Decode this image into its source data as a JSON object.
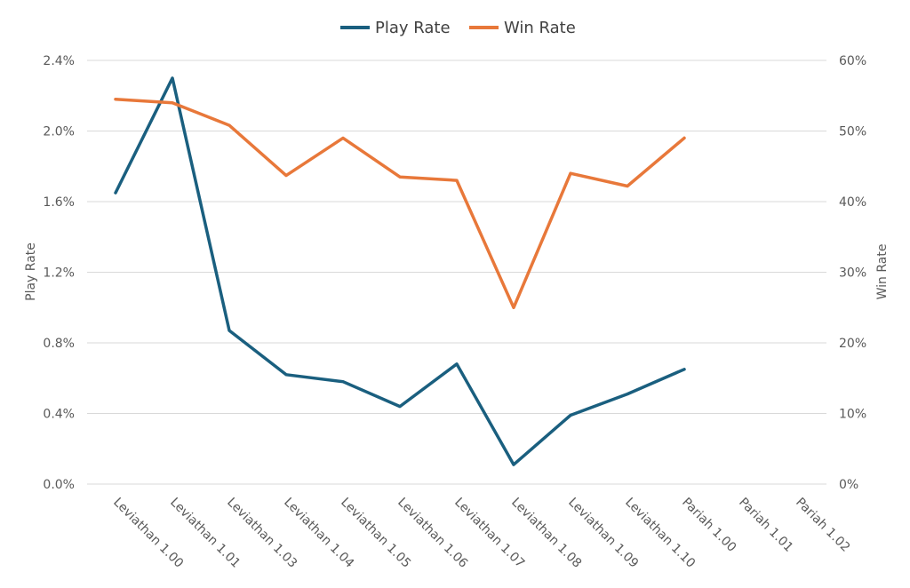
{
  "chart_data": {
    "type": "line",
    "categories": [
      "Leviathan 1.00",
      "Leviathan 1.01",
      "Leviathan 1.03",
      "Leviathan 1.04",
      "Leviathan 1.05",
      "Leviathan 1.06",
      "Leviathan 1.07",
      "Leviathan 1.08",
      "Leviathan 1.09",
      "Leviathan 1.10",
      "Pariah 1.00",
      "Pariah 1.01",
      "Pariah 1.02"
    ],
    "series": [
      {
        "name": "Play Rate",
        "axis": "left",
        "color": "#1a5f7f",
        "values": [
          1.65,
          2.3,
          0.87,
          0.62,
          0.58,
          0.44,
          0.68,
          0.11,
          0.39,
          0.51,
          0.65,
          null,
          null
        ]
      },
      {
        "name": "Win Rate",
        "axis": "right",
        "color": "#e8783a",
        "values": [
          54.5,
          54.0,
          50.8,
          43.7,
          49.0,
          43.5,
          43.0,
          25.0,
          44.0,
          42.2,
          49.0,
          null,
          null
        ]
      }
    ],
    "y_left": {
      "label": "Play Rate",
      "min": 0,
      "max": 2.4,
      "ticks": [
        "0.0%",
        "0.4%",
        "0.8%",
        "1.2%",
        "1.6%",
        "2.0%",
        "2.4%"
      ]
    },
    "y_right": {
      "label": "Win Rate",
      "min": 0,
      "max": 60,
      "ticks": [
        "0%",
        "10%",
        "20%",
        "30%",
        "40%",
        "50%",
        "60%"
      ]
    },
    "grid": true,
    "legend": "top-center"
  }
}
